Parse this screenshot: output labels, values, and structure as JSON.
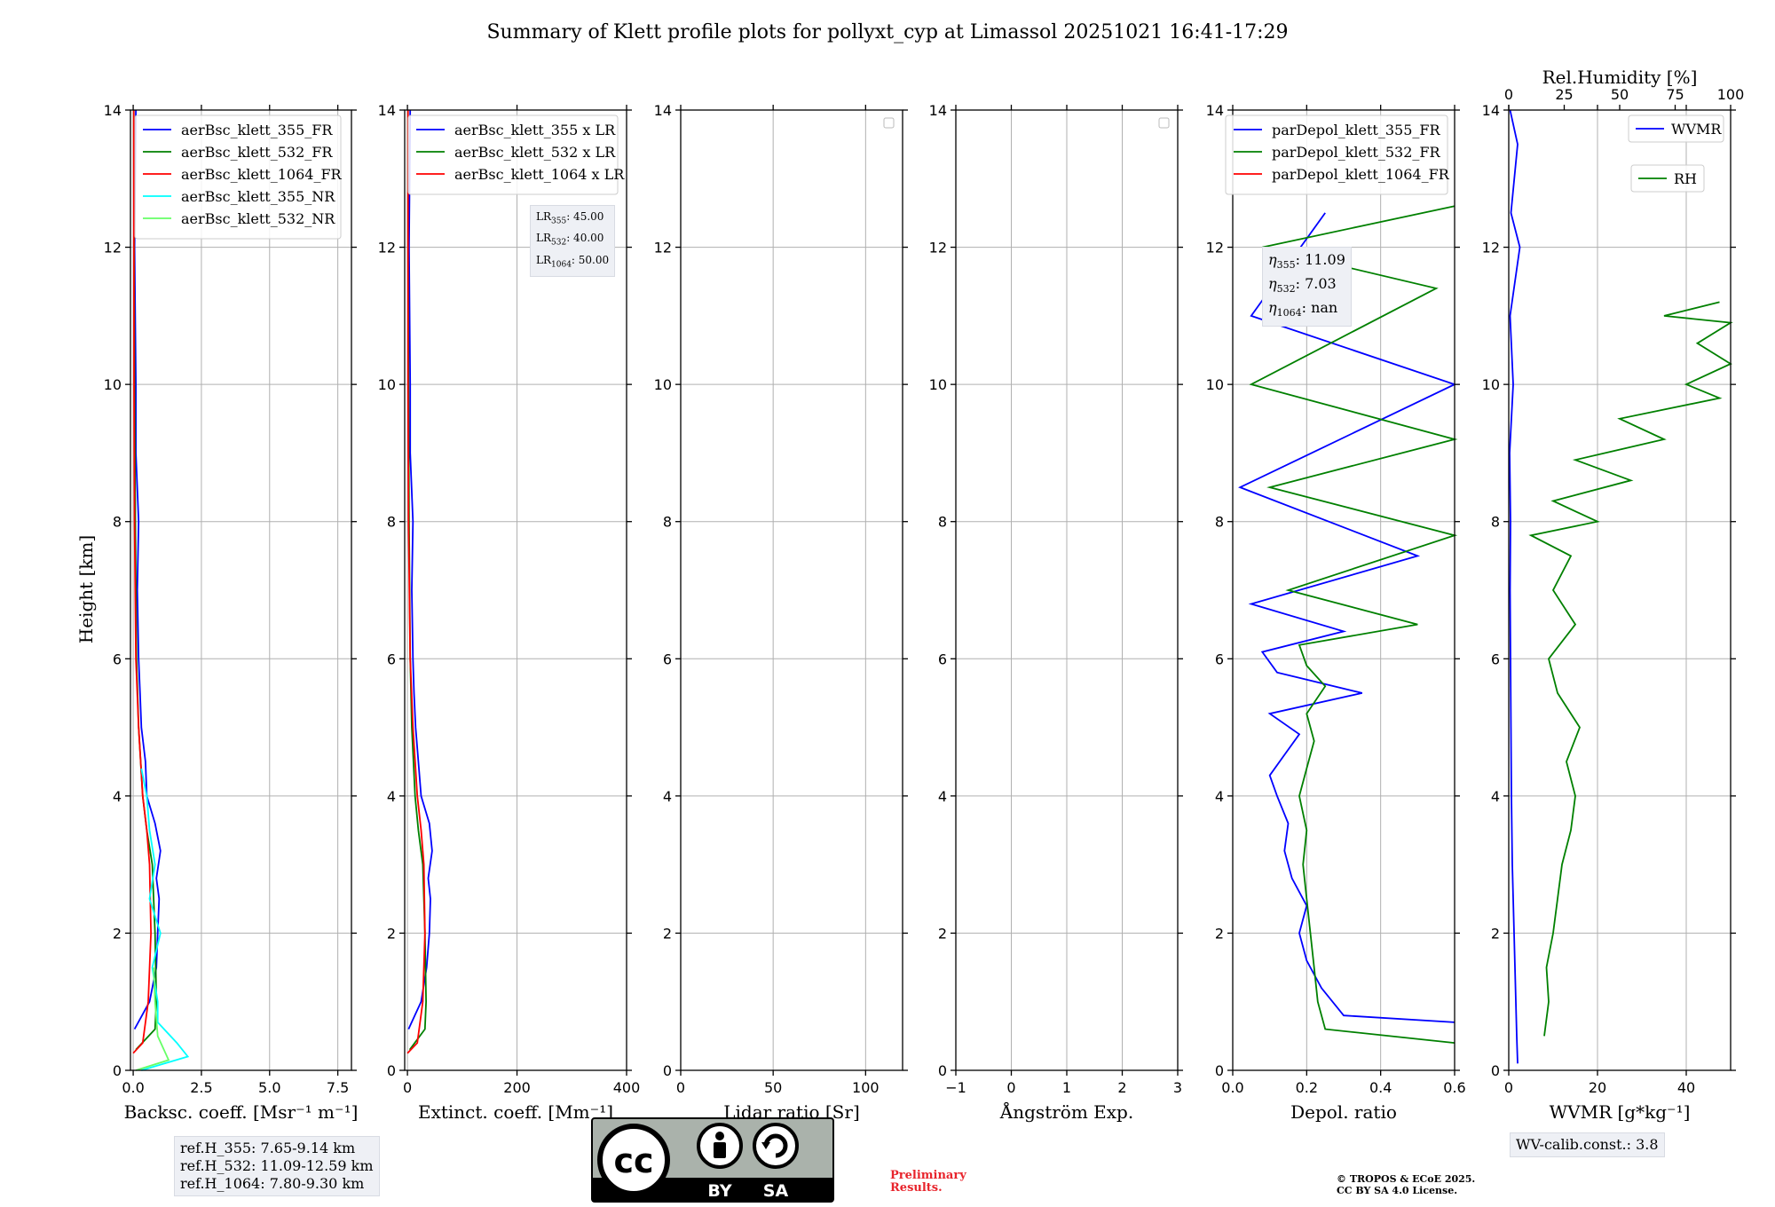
{
  "title": "Summary of Klett profile plots for pollyxt_cyp at Limassol 20251021 16:41-17:29",
  "ylabel": "Height [km]",
  "ref_heights": [
    "ref.H_355: 7.65-9.14 km",
    "ref.H_532: 11.09-12.59 km",
    "ref.H_1064: 7.80-9.30 km"
  ],
  "lr_text": [
    {
      "prefix": "LR",
      "sub": "355",
      "value": ": 45.00"
    },
    {
      "prefix": "LR",
      "sub": "532",
      "value": ": 40.00"
    },
    {
      "prefix": "LR",
      "sub": "1064",
      "value": ": 50.00"
    }
  ],
  "eta_text": [
    {
      "prefix": "η",
      "sub": "355",
      "value": ": 11.09"
    },
    {
      "prefix": "η",
      "sub": "532",
      "value": ": 7.03"
    },
    {
      "prefix": "η",
      "sub": "1064",
      "value": ": nan"
    }
  ],
  "wv_calib": "WV-calib.const.: 3.8",
  "preliminary": [
    "Preliminary",
    "Results."
  ],
  "copyright": [
    "© TROPOS & ECoE 2025.",
    "CC BY SA 4.0 License."
  ],
  "license_badge": {
    "cc": "cc",
    "by": "BY",
    "sa": "SA"
  },
  "colors": {
    "blue": "#0000ff",
    "green": "#008000",
    "red": "#ff0000",
    "cyan": "#00ffff",
    "lightgreen": "#66ff66",
    "grid": "#b0b0b0"
  },
  "chart_data": [
    {
      "type": "line",
      "id": "backscatter",
      "xlabel": "Backsc. coeff. [Msr⁻¹ m⁻¹]",
      "xlim": [
        -0.1,
        8.0
      ],
      "ylim": [
        0,
        14
      ],
      "xticks": [
        0.0,
        2.5,
        5.0,
        7.5
      ],
      "xticklabels": [
        "0.0",
        "2.5",
        "5.0",
        "7.5"
      ],
      "yticks": [
        0,
        2,
        4,
        6,
        8,
        10,
        12,
        14
      ],
      "legend": "top-right",
      "series": [
        {
          "name": "aerBsc_klett_355_FR",
          "color": "blue",
          "x": [
            0.05,
            0.6,
            0.85,
            0.9,
            0.95,
            0.85,
            1.0,
            0.8,
            0.5,
            0.45,
            0.3,
            0.25,
            0.2,
            0.15,
            0.2,
            0.1,
            0.1,
            0.05,
            0.1
          ],
          "y": [
            0.6,
            1.0,
            1.5,
            2.0,
            2.5,
            2.8,
            3.2,
            3.6,
            4.0,
            4.5,
            5.0,
            5.5,
            6.0,
            7.0,
            8.0,
            9.0,
            10.0,
            12.0,
            14.0
          ]
        },
        {
          "name": "aerBsc_klett_532_FR",
          "color": "green",
          "x": [
            0.1,
            0.8,
            0.85,
            0.8,
            0.75,
            0.7,
            0.5,
            0.35,
            0.2,
            0.12,
            0.08,
            0.05,
            0.03,
            0.02
          ],
          "y": [
            0.3,
            0.6,
            1.0,
            2.0,
            2.5,
            3.0,
            3.5,
            4.0,
            5.0,
            6.0,
            8.0,
            10.0,
            12.0,
            14.0
          ]
        },
        {
          "name": "aerBsc_klett_1064_FR",
          "color": "red",
          "x": [
            0.0,
            0.35,
            0.55,
            0.65,
            0.6,
            0.5,
            0.35,
            0.2,
            0.1,
            0.05,
            0.03,
            0.02
          ],
          "y": [
            0.25,
            0.4,
            1.0,
            2.0,
            3.0,
            3.5,
            4.0,
            5.0,
            6.0,
            8.0,
            10.0,
            14.0
          ]
        },
        {
          "name": "aerBsc_klett_355_NR",
          "color": "cyan",
          "x": [
            0.3,
            2.0,
            1.6,
            0.9,
            0.9,
            0.7,
            1.0,
            0.6,
            0.8,
            0.6,
            0.5,
            0.3
          ],
          "y": [
            0.0,
            0.2,
            0.4,
            0.7,
            1.0,
            1.5,
            2.0,
            2.5,
            3.0,
            3.5,
            4.0,
            4.4
          ]
        },
        {
          "name": "aerBsc_klett_532_NR",
          "color": "lightgreen",
          "x": [
            0.1,
            1.3,
            0.9,
            0.8,
            0.75
          ],
          "y": [
            0.0,
            0.15,
            0.5,
            1.0,
            1.5
          ]
        }
      ]
    },
    {
      "type": "line",
      "id": "extinction",
      "xlabel": "Extinct. coeff. [Mm⁻¹]",
      "xlim": [
        -5,
        400
      ],
      "ylim": [
        0,
        14
      ],
      "xticks": [
        0,
        200,
        400
      ],
      "xticklabels": [
        "0",
        "200",
        "400"
      ],
      "yticks": [
        0,
        2,
        4,
        6,
        8,
        10,
        12,
        14
      ],
      "legend": "top-right",
      "series": [
        {
          "name": "aerBsc_klett_355 x LR",
          "color": "blue",
          "x": [
            2,
            25,
            35,
            40,
            42,
            38,
            45,
            40,
            25,
            20,
            15,
            12,
            10,
            8,
            10,
            5,
            5,
            3,
            5
          ],
          "y": [
            0.6,
            1.0,
            1.5,
            2.0,
            2.5,
            2.8,
            3.2,
            3.6,
            4.0,
            4.5,
            5.0,
            5.5,
            6.0,
            7.0,
            8.0,
            9.0,
            10.0,
            12.0,
            14.0
          ]
        },
        {
          "name": "aerBsc_klett_532 x LR",
          "color": "green",
          "x": [
            4,
            32,
            34,
            32,
            30,
            28,
            20,
            14,
            8,
            5,
            3,
            2,
            1,
            1
          ],
          "y": [
            0.3,
            0.6,
            1.0,
            2.0,
            2.5,
            3.0,
            3.5,
            4.0,
            5.0,
            6.0,
            8.0,
            10.0,
            12.0,
            14.0
          ]
        },
        {
          "name": "aerBsc_klett_1064 x LR",
          "color": "red",
          "x": [
            0,
            18,
            28,
            32,
            30,
            25,
            18,
            10,
            5,
            2,
            1,
            1
          ],
          "y": [
            0.25,
            0.4,
            1.0,
            2.0,
            3.0,
            3.5,
            4.0,
            5.0,
            6.0,
            8.0,
            10.0,
            14.0
          ]
        }
      ]
    },
    {
      "type": "line",
      "id": "lidar_ratio",
      "xlabel": "Lidar ratio [Sr]",
      "xlim": [
        0,
        120
      ],
      "ylim": [
        0,
        14
      ],
      "xticks": [
        0,
        50,
        100
      ],
      "xticklabels": [
        "0",
        "50",
        "100"
      ],
      "yticks": [
        0,
        2,
        4,
        6,
        8,
        10,
        12,
        14
      ],
      "legend": "empty",
      "series": []
    },
    {
      "type": "line",
      "id": "angstrom",
      "xlabel": "Ångström Exp.",
      "xlim": [
        -1,
        3
      ],
      "ylim": [
        0,
        14
      ],
      "xticks": [
        -1,
        0,
        1,
        2,
        3
      ],
      "xticklabels": [
        "−1",
        "0",
        "1",
        "2",
        "3"
      ],
      "yticks": [
        0,
        2,
        4,
        6,
        8,
        10,
        12,
        14
      ],
      "legend": "empty",
      "series": []
    },
    {
      "type": "line",
      "id": "depol",
      "xlabel": "Depol. ratio",
      "xlim": [
        0,
        0.6
      ],
      "ylim": [
        0,
        14
      ],
      "xticks": [
        0.0,
        0.2,
        0.4,
        0.6
      ],
      "xticklabels": [
        "0.0",
        "0.2",
        "0.4",
        "0.6"
      ],
      "yticks": [
        0,
        2,
        4,
        6,
        8,
        10,
        12,
        14
      ],
      "legend": "top-right",
      "series": [
        {
          "name": "parDepol_klett_355_FR",
          "color": "blue",
          "x": [
            0.6,
            0.3,
            0.24,
            0.2,
            0.18,
            0.2,
            0.16,
            0.14,
            0.15,
            0.12,
            0.1,
            0.14,
            0.18,
            0.1,
            0.35,
            0.12,
            0.08,
            0.3,
            0.05,
            0.5,
            0.02,
            0.6,
            0.05,
            0.25
          ],
          "y": [
            0.7,
            0.8,
            1.2,
            1.6,
            2.0,
            2.4,
            2.8,
            3.2,
            3.6,
            4.0,
            4.3,
            4.6,
            4.9,
            5.2,
            5.5,
            5.8,
            6.1,
            6.4,
            6.8,
            7.5,
            8.5,
            10.0,
            11.0,
            12.5
          ]
        },
        {
          "name": "parDepol_klett_532_FR",
          "color": "green",
          "x": [
            0.6,
            0.25,
            0.23,
            0.22,
            0.21,
            0.2,
            0.19,
            0.2,
            0.18,
            0.2,
            0.22,
            0.2,
            0.25,
            0.2,
            0.18,
            0.5,
            0.15,
            0.6,
            0.1,
            0.6,
            0.05,
            0.55,
            0.08,
            0.6
          ],
          "y": [
            0.4,
            0.6,
            1.0,
            1.5,
            2.0,
            2.5,
            3.0,
            3.5,
            4.0,
            4.4,
            4.8,
            5.2,
            5.6,
            5.9,
            6.2,
            6.5,
            7.0,
            7.8,
            8.5,
            9.2,
            10.0,
            11.4,
            12.0,
            12.6
          ]
        },
        {
          "name": "parDepol_klett_1064_FR",
          "color": "red",
          "x": [],
          "y": []
        }
      ]
    },
    {
      "type": "line",
      "id": "wvmr",
      "xlabel": "WVMR [g*kg⁻¹]",
      "xlabel_top": "Rel.Humidity [%]",
      "xlim": [
        0,
        50
      ],
      "ylim": [
        0,
        14
      ],
      "xticks": [
        0,
        20,
        40
      ],
      "xticklabels": [
        "0",
        "20",
        "40"
      ],
      "xlim_top": [
        0,
        100
      ],
      "xticks_top": [
        0,
        25,
        50,
        75,
        100
      ],
      "xticklabels_top": [
        "0",
        "25",
        "50",
        "75",
        "100"
      ],
      "yticks": [
        0,
        2,
        4,
        6,
        8,
        10,
        12,
        14
      ],
      "legend": "top-right",
      "series": [
        {
          "name": "WVMR",
          "color": "blue",
          "axis": "bottom",
          "x": [
            2.0,
            1.8,
            1.6,
            1.4,
            1.2,
            1.0,
            0.8,
            0.6,
            0.5,
            0.4,
            0.3,
            0.4,
            0.2,
            1.0,
            0.3,
            2.5,
            0.5,
            2.0,
            0.3
          ],
          "y": [
            0.1,
            0.5,
            1.0,
            1.5,
            2.0,
            2.5,
            3.0,
            4.0,
            5.0,
            6.0,
            7.0,
            8.0,
            9.0,
            10.0,
            11.0,
            12.0,
            12.5,
            13.5,
            14.0
          ]
        },
        {
          "name": "RH",
          "color": "green",
          "axis": "top",
          "x": [
            16,
            18,
            17,
            20,
            22,
            24,
            28,
            30,
            26,
            32,
            22,
            18,
            30,
            20,
            28,
            10,
            40,
            20,
            55,
            30,
            70,
            50,
            95,
            80,
            100,
            85,
            100,
            70,
            95
          ],
          "y": [
            0.5,
            1.0,
            1.5,
            2.0,
            2.5,
            3.0,
            3.5,
            4.0,
            4.5,
            5.0,
            5.5,
            6.0,
            6.5,
            7.0,
            7.5,
            7.8,
            8.0,
            8.3,
            8.6,
            8.9,
            9.2,
            9.5,
            9.8,
            10.0,
            10.3,
            10.6,
            10.9,
            11.0,
            11.2
          ]
        }
      ]
    }
  ]
}
